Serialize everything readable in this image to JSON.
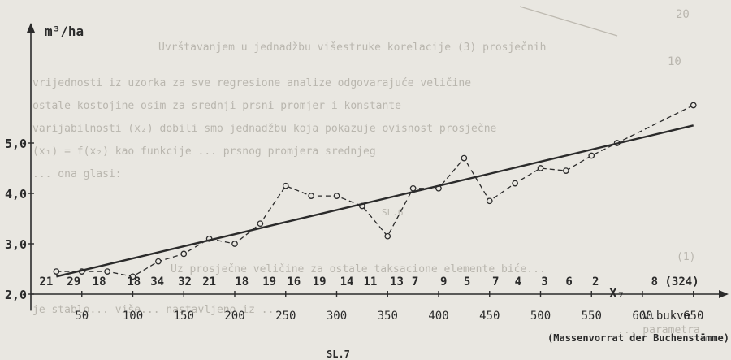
{
  "chart_data": {
    "type": "line",
    "ylabel": "m³/ha",
    "xlabel": "V.bukve",
    "x_axis_variable": "X₇",
    "xlabel_sub": "(Massenvorrat der Buchenstämme)",
    "caption": "SL.7",
    "xlim": [
      0,
      675
    ],
    "ylim": [
      1.8,
      5.9
    ],
    "x_ticks": [
      50,
      100,
      150,
      200,
      250,
      300,
      350,
      400,
      450,
      500,
      550,
      600,
      650
    ],
    "y_ticks": [
      2.0,
      3.0,
      4.0,
      5.0
    ],
    "y_tick_labels": [
      "2,0",
      "3,0",
      "4,0",
      "5,0"
    ],
    "counts": [
      {
        "x": 15,
        "label": "21"
      },
      {
        "x": 42,
        "label": "29"
      },
      {
        "x": 67,
        "label": "18"
      },
      {
        "x": 101,
        "label": "18"
      },
      {
        "x": 124,
        "label": "34"
      },
      {
        "x": 151,
        "label": "32"
      },
      {
        "x": 175,
        "label": "21"
      },
      {
        "x": 207,
        "label": "18"
      },
      {
        "x": 234,
        "label": "19"
      },
      {
        "x": 258,
        "label": "16"
      },
      {
        "x": 283,
        "label": "19"
      },
      {
        "x": 310,
        "label": "14"
      },
      {
        "x": 333,
        "label": "11"
      },
      {
        "x": 359,
        "label": "13"
      },
      {
        "x": 377,
        "label": "7"
      },
      {
        "x": 405,
        "label": "9"
      },
      {
        "x": 428,
        "label": "5"
      },
      {
        "x": 456,
        "label": "7"
      },
      {
        "x": 478,
        "label": "4"
      },
      {
        "x": 504,
        "label": "3"
      },
      {
        "x": 528,
        "label": "6"
      },
      {
        "x": 554,
        "label": "2"
      },
      {
        "x": 632,
        "label": "8 (324)"
      }
    ],
    "series": [
      {
        "style": "dashed-with-markers",
        "x": [
          25,
          50,
          75,
          100,
          125,
          150,
          175,
          200,
          225,
          250,
          275,
          300,
          325,
          350,
          375,
          400,
          425,
          450,
          475,
          500,
          525,
          550,
          575,
          650
        ],
        "y": [
          2.45,
          2.45,
          2.45,
          2.35,
          2.65,
          2.8,
          3.1,
          3.0,
          3.4,
          4.15,
          3.95,
          3.95,
          3.75,
          3.15,
          4.1,
          4.1,
          4.7,
          3.85,
          4.2,
          4.5,
          4.45,
          4.75,
          5.0,
          5.75
        ]
      },
      {
        "style": "solid-regression",
        "x": [
          25,
          650
        ],
        "y": [
          2.35,
          5.35
        ]
      }
    ]
  },
  "background_text": [
    "20",
    "10",
    "Uvrštavanjem u jednadžbu višestruke korelacije (3) prosječnih",
    "vrijednosti iz uzorka za sve regresione analize odgovarajuće veličine",
    "ostale kostojine osim za srednji prsni promjer i konstante",
    "varijabilnosti (x₂) dobili smo jednadžbu koja pokazuje ovisnost prosječne",
    "(x₁) = f(x₂) kao funkcije ... prsnog promjera srednjeg",
    "... ona glasi:",
    "Uz prosječne veličine za ostale taksacione elemente biće...",
    "je stablo... više... nastavljeno iz ...",
    "... parametra",
    "(1)",
    "SL.6"
  ]
}
